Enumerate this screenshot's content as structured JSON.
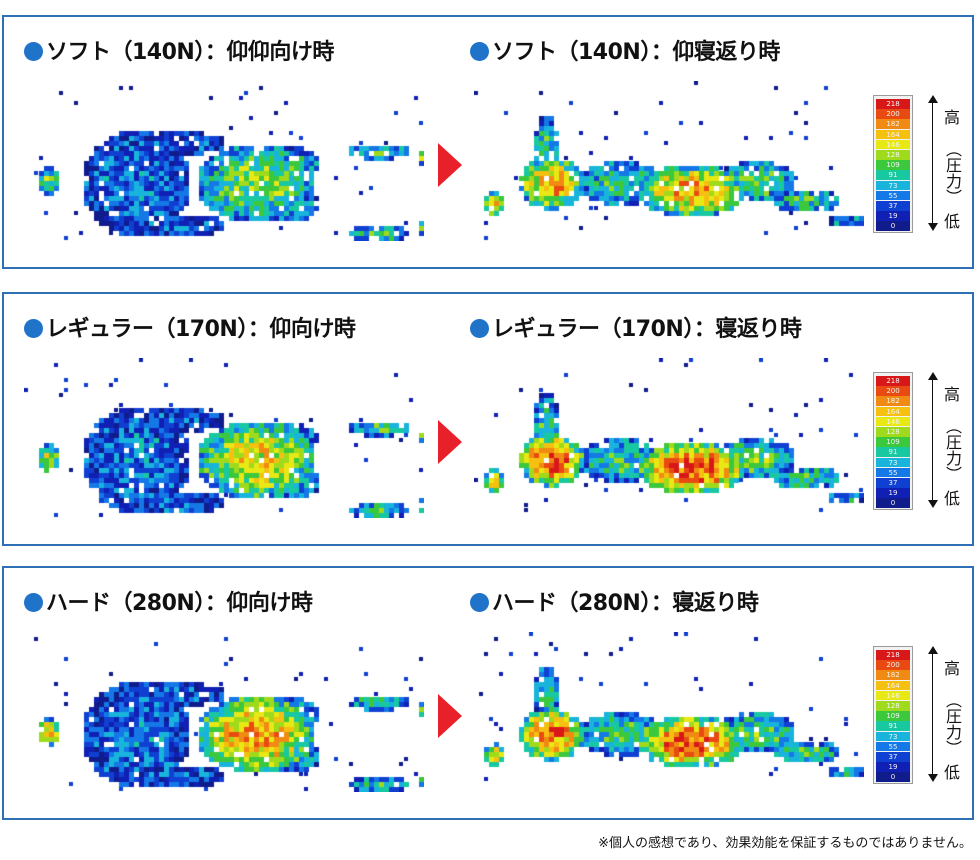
{
  "colors": {
    "border": "#2f6fb3",
    "bullet": "#1f73c8",
    "arrow": "#e8202a"
  },
  "panels": [
    {
      "left_title": "ソフト（140N）：仰仰向け時",
      "right_title": "ソフト（140N）：仰寝返り時",
      "firmness": "soft"
    },
    {
      "left_title": "レギュラー（170N）：仰向け時",
      "right_title": "レギュラー（170N）：寝返り時",
      "firmness": "regular"
    },
    {
      "left_title": "ハード（280N）：仰向け時",
      "right_title": "ハード（280N）：寝返り時",
      "firmness": "hard"
    }
  ],
  "legend": {
    "values": [
      "218",
      "200",
      "182",
      "164",
      "146",
      "128",
      "109",
      "91",
      "73",
      "55",
      "37",
      "19",
      "0"
    ],
    "colors": [
      "#d81818",
      "#e84a12",
      "#f08a12",
      "#f5c010",
      "#e8e814",
      "#9fdb1c",
      "#3cc83c",
      "#18c8a0",
      "#18b4dc",
      "#1478e6",
      "#1040d2",
      "#1020b4",
      "#101c8c"
    ],
    "scale_high": "高",
    "scale_mid": "（圧力）",
    "scale_low": "低"
  },
  "footnote": "※個人の感想であり、効果効能を保証するものではありません。"
}
